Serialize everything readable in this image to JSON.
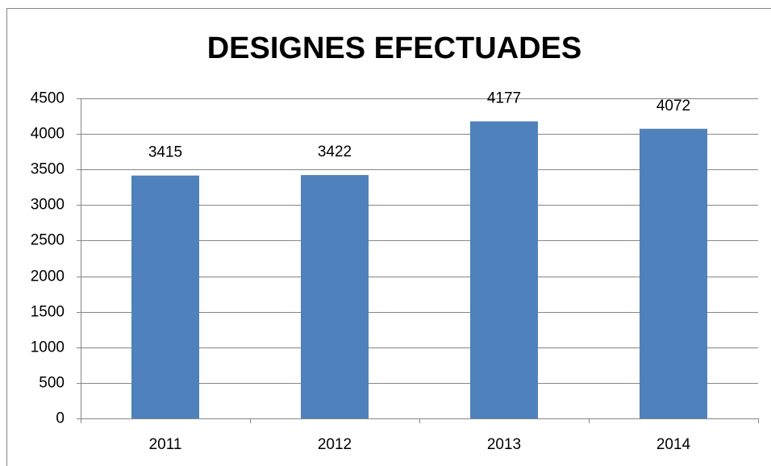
{
  "chart_data": {
    "type": "bar",
    "title": "DESIGNES EFECTUADES",
    "categories": [
      "2011",
      "2012",
      "2013",
      "2014"
    ],
    "values": [
      3415,
      3422,
      4177,
      4072
    ],
    "color": "#4f81bd",
    "ylim": [
      0,
      4500
    ],
    "yticks": [
      0,
      500,
      1000,
      1500,
      2000,
      2500,
      3000,
      3500,
      4000,
      4500
    ],
    "grid": true
  }
}
